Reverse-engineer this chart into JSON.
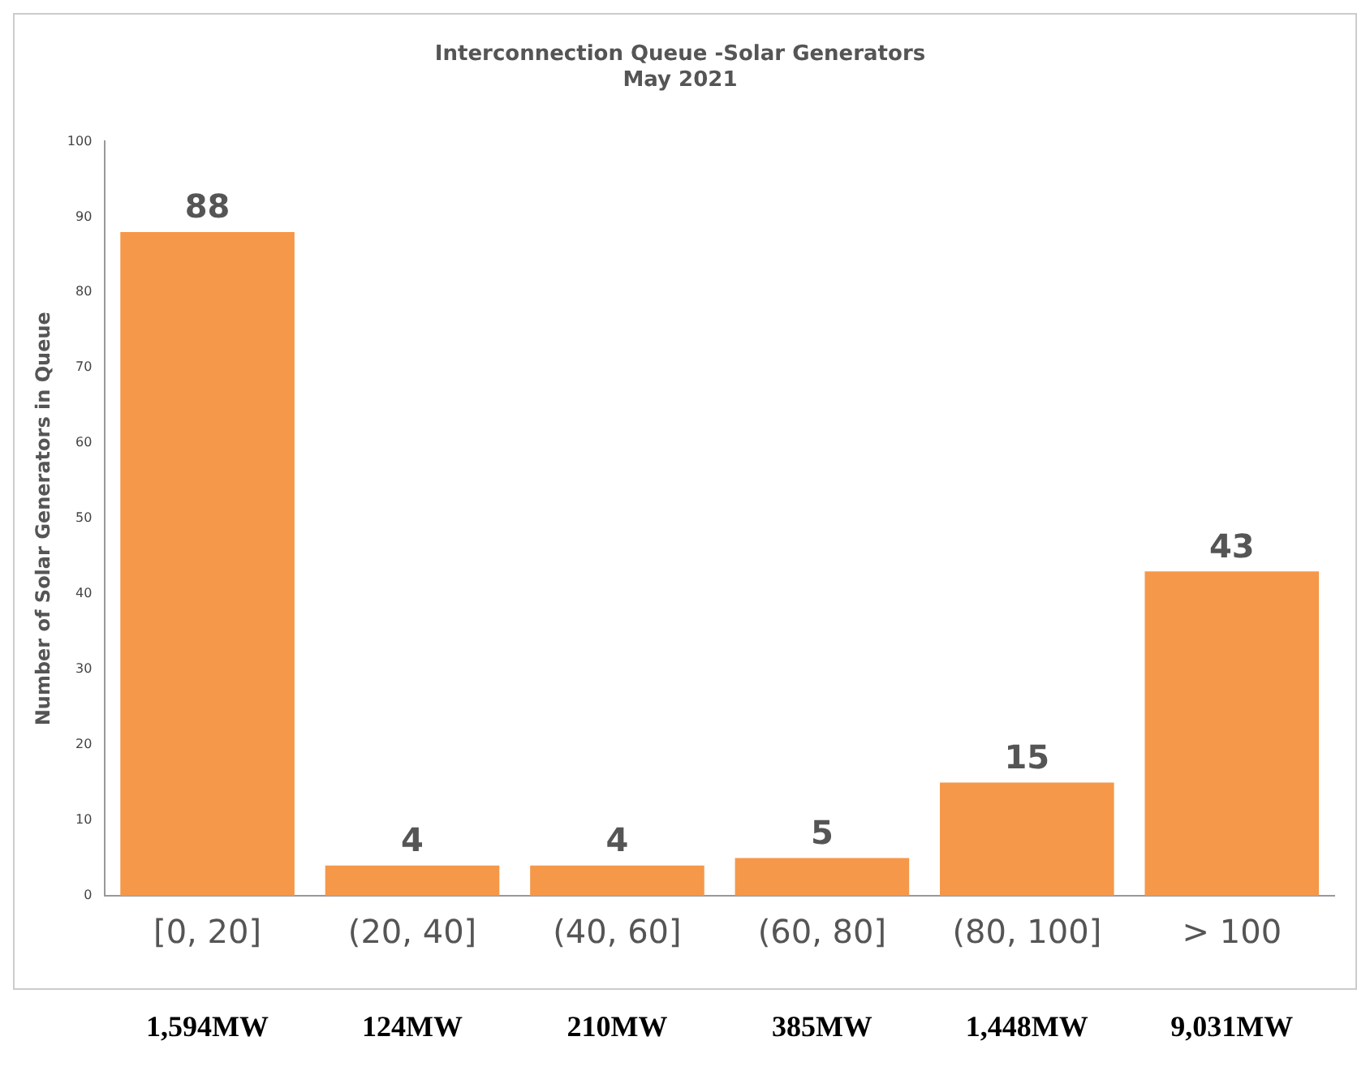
{
  "chart_data": {
    "type": "bar",
    "title": [
      "Interconnection Queue -Solar Generators",
      "May 2021"
    ],
    "ylabel": "Number of Solar Generators in Queue",
    "categories": [
      "[0, 20]",
      "(20, 40]",
      "(40, 60]",
      "(60, 80]",
      "(80, 100]",
      "> 100"
    ],
    "values": [
      88,
      4,
      4,
      5,
      15,
      43
    ],
    "color": "#f5984a",
    "ylim": [
      0,
      100
    ],
    "yticks": [
      0,
      10,
      20,
      30,
      40,
      50,
      60,
      70,
      80,
      90,
      100
    ],
    "grid": false,
    "legend": false,
    "data_labels": true,
    "annotations": [
      "1,594MW",
      "124MW",
      "210MW",
      "385MW",
      "1,448MW",
      "9,031MW"
    ]
  }
}
